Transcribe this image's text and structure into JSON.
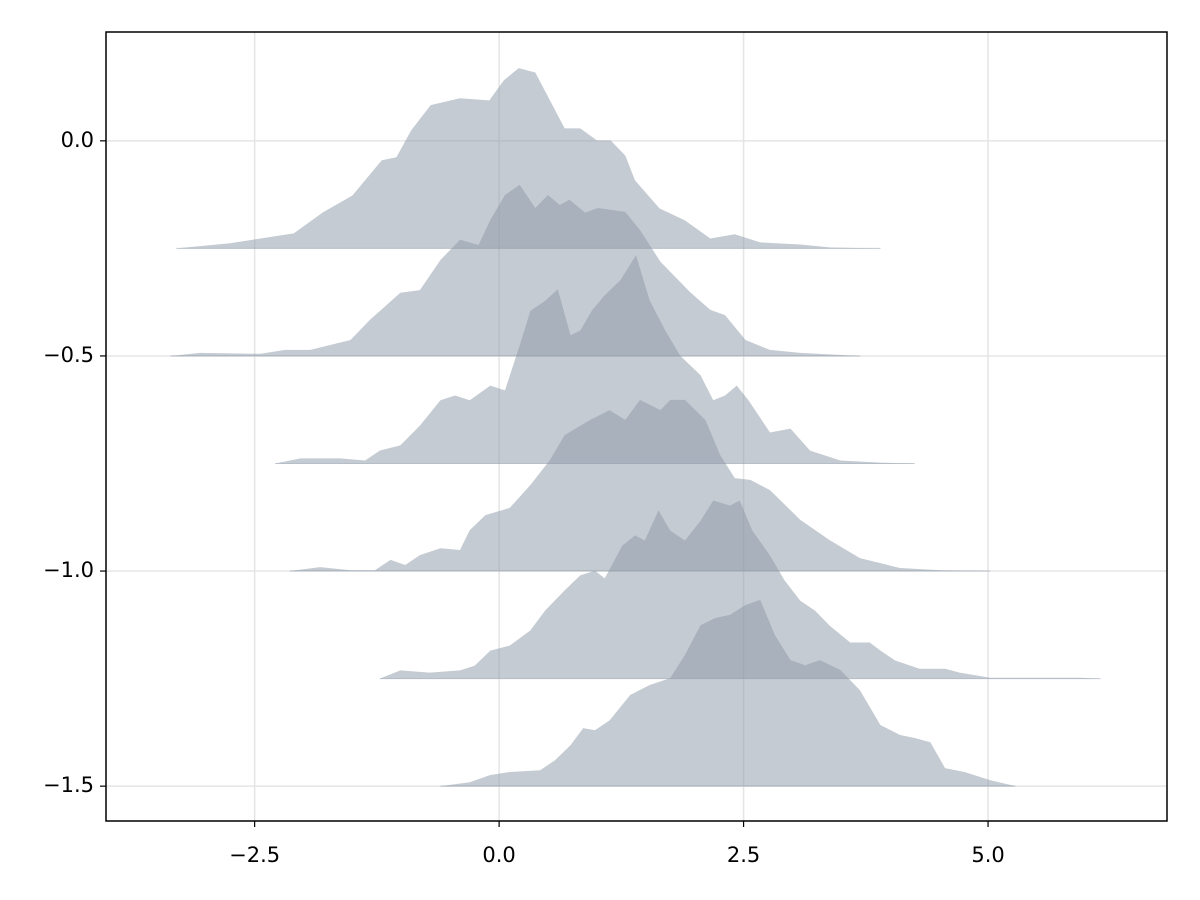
{
  "chart_data": {
    "type": "ridgeline",
    "color": "#8b98a5",
    "alpha": 0.5,
    "grid": true,
    "xlim": [
      -4.02,
      6.83
    ],
    "ylim": [
      -1.581,
      0.253
    ],
    "xticks": [
      {
        "value": -2.5,
        "label": "−2.5"
      },
      {
        "value": 0,
        "label": "0.0"
      },
      2.5,
      {
        "value": 5,
        "label": "5.0"
      }
    ],
    "yticks": [
      {
        "value": 0,
        "label": "0.0"
      },
      {
        "value": -0.5,
        "label": "−0.5"
      },
      {
        "value": -1,
        "label": "−1.0"
      },
      {
        "value": -1.5,
        "label": "−1.5"
      }
    ],
    "series": [
      {
        "baseline": -0.25,
        "x": [
          -3.3,
          -2.75,
          -2.1,
          -1.8,
          -1.5,
          -1.2,
          -1.05,
          -0.9,
          -0.7,
          -0.4,
          -0.1,
          0.05,
          0.2,
          0.37,
          0.52,
          0.67,
          0.83,
          1.0,
          1.14,
          1.29,
          1.39,
          1.64,
          1.9,
          2.16,
          2.41,
          2.67,
          3.08,
          3.39,
          3.9
        ],
        "values": [
          0,
          0.012,
          0.035,
          0.084,
          0.123,
          0.205,
          0.212,
          0.274,
          0.333,
          0.349,
          0.344,
          0.391,
          0.419,
          0.409,
          0.344,
          0.279,
          0.279,
          0.251,
          0.251,
          0.216,
          0.158,
          0.093,
          0.065,
          0.023,
          0.033,
          0.014,
          0.009,
          0.002,
          0
        ]
      },
      {
        "baseline": -0.5,
        "x": [
          -3.36,
          -3.06,
          -2.44,
          -2.19,
          -1.93,
          -1.52,
          -1.32,
          -1.01,
          -0.81,
          -0.6,
          -0.4,
          -0.21,
          -0.09,
          0.06,
          0.21,
          0.37,
          0.5,
          0.62,
          0.72,
          0.88,
          1.01,
          1.29,
          1.44,
          1.65,
          1.95,
          2.16,
          2.31,
          2.52,
          2.77,
          3.08,
          3.69
        ],
        "values": [
          0,
          0.007,
          0.005,
          0.014,
          0.014,
          0.037,
          0.084,
          0.147,
          0.153,
          0.223,
          0.27,
          0.258,
          0.316,
          0.374,
          0.398,
          0.344,
          0.374,
          0.351,
          0.363,
          0.333,
          0.344,
          0.335,
          0.293,
          0.219,
          0.149,
          0.107,
          0.095,
          0.037,
          0.014,
          0.007,
          0
        ]
      },
      {
        "baseline": -0.75,
        "x": [
          -2.29,
          -2.03,
          -1.63,
          -1.37,
          -1.22,
          -1.01,
          -0.81,
          -0.6,
          -0.45,
          -0.3,
          -0.09,
          0.06,
          0.21,
          0.32,
          0.47,
          0.6,
          0.73,
          0.83,
          0.95,
          1.08,
          1.24,
          1.4,
          1.54,
          1.7,
          1.85,
          2.06,
          2.19,
          2.31,
          2.43,
          2.55,
          2.77,
          2.98,
          3.18,
          3.49,
          3.9,
          4.25
        ],
        "values": [
          0,
          0.012,
          0.012,
          0.007,
          0.03,
          0.042,
          0.088,
          0.147,
          0.158,
          0.147,
          0.181,
          0.17,
          0.274,
          0.355,
          0.378,
          0.405,
          0.298,
          0.309,
          0.356,
          0.391,
          0.426,
          0.484,
          0.379,
          0.309,
          0.251,
          0.205,
          0.147,
          0.158,
          0.181,
          0.147,
          0.072,
          0.081,
          0.03,
          0.007,
          0.002,
          0
        ]
      },
      {
        "baseline": -1.0,
        "x": [
          -2.14,
          -1.83,
          -1.52,
          -1.27,
          -1.11,
          -0.96,
          -0.81,
          -0.6,
          -0.4,
          -0.3,
          -0.14,
          0.11,
          0.32,
          0.52,
          0.67,
          0.93,
          1.13,
          1.29,
          1.44,
          1.65,
          1.75,
          1.9,
          2.11,
          2.26,
          2.41,
          2.57,
          2.77,
          3.08,
          3.38,
          3.69,
          4.1,
          4.51,
          5.02
        ],
        "values": [
          0,
          0.009,
          0.002,
          0.002,
          0.026,
          0.014,
          0.037,
          0.053,
          0.049,
          0.095,
          0.13,
          0.147,
          0.2,
          0.258,
          0.316,
          0.351,
          0.374,
          0.351,
          0.398,
          0.374,
          0.398,
          0.398,
          0.351,
          0.27,
          0.216,
          0.212,
          0.188,
          0.119,
          0.072,
          0.03,
          0.007,
          0.002,
          0
        ]
      },
      {
        "baseline": -1.25,
        "x": [
          -1.22,
          -1.01,
          -0.71,
          -0.4,
          -0.25,
          -0.09,
          0.11,
          0.32,
          0.47,
          0.67,
          0.83,
          0.98,
          1.08,
          1.26,
          1.39,
          1.49,
          1.63,
          1.75,
          1.9,
          2.06,
          2.19,
          2.36,
          2.46,
          2.59,
          2.77,
          2.92,
          3.08,
          3.23,
          3.38,
          3.59,
          3.79,
          3.9,
          4.05,
          4.3,
          4.56,
          4.71,
          5.02,
          5.43,
          5.94,
          6.15
        ],
        "values": [
          0,
          0.019,
          0.014,
          0.019,
          0.03,
          0.065,
          0.077,
          0.112,
          0.158,
          0.205,
          0.24,
          0.251,
          0.233,
          0.309,
          0.333,
          0.321,
          0.391,
          0.344,
          0.321,
          0.367,
          0.414,
          0.402,
          0.414,
          0.344,
          0.286,
          0.228,
          0.181,
          0.158,
          0.123,
          0.084,
          0.084,
          0.065,
          0.042,
          0.023,
          0.023,
          0.014,
          0.002,
          0.002,
          0.002,
          0
        ]
      },
      {
        "baseline": -1.5,
        "x": [
          -0.6,
          -0.3,
          -0.09,
          0.11,
          0.42,
          0.57,
          0.73,
          0.86,
          0.98,
          1.13,
          1.34,
          1.54,
          1.75,
          1.9,
          2.06,
          2.21,
          2.36,
          2.52,
          2.67,
          2.82,
          2.98,
          3.13,
          3.28,
          3.49,
          3.69,
          3.9,
          4.1,
          4.25,
          4.41,
          4.56,
          4.76,
          5.02,
          5.28
        ],
        "values": [
          0,
          0.009,
          0.026,
          0.033,
          0.037,
          0.06,
          0.095,
          0.135,
          0.13,
          0.153,
          0.212,
          0.235,
          0.251,
          0.305,
          0.374,
          0.391,
          0.398,
          0.421,
          0.433,
          0.351,
          0.293,
          0.281,
          0.293,
          0.27,
          0.223,
          0.142,
          0.119,
          0.112,
          0.102,
          0.042,
          0.033,
          0.014,
          0
        ]
      }
    ]
  }
}
